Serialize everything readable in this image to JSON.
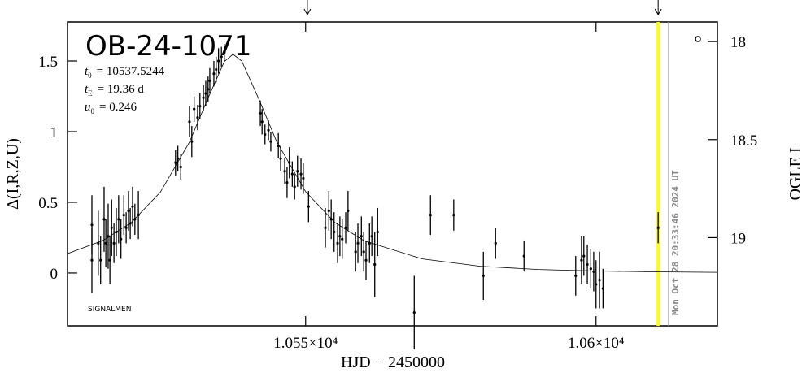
{
  "chart_data": {
    "type": "scatter",
    "title": "OB-24-1071",
    "xlabel": "HJD − 2450000",
    "ylabel": "Δ(I,R,Z,U)",
    "y2label": "OGLE I",
    "xlim": [
      10509,
      10620.9
    ],
    "ylim": [
      -0.374,
      1.776
    ],
    "y2lim": [
      19.45,
      17.9
    ],
    "xticks": [
      {
        "value": 10550,
        "label": "1.055×10⁴"
      },
      {
        "value": 10600,
        "label": "1.06×10⁴"
      }
    ],
    "yticks": [
      0,
      0.5,
      1,
      1.5
    ],
    "y2ticks": [
      18,
      18.5,
      19
    ],
    "color": "#000000",
    "points": {
      "x": [
        10513.2,
        10513.2,
        10514.3,
        10514.7,
        10515.3,
        10515.6,
        10516.0,
        10516.3,
        10516.6,
        10517.0,
        10517.4,
        10517.8,
        10518.2,
        10518.7,
        10519.1,
        10519.5,
        10519.8,
        10520.2,
        10520.6,
        10521.2,
        10527.6,
        10528.0,
        10528.5,
        10530.0,
        10530.4,
        10530.8,
        10531.4,
        10531.8,
        10532.4,
        10532.8,
        10533.2,
        10533.5,
        10534.2,
        10534.6,
        10535.0,
        10535.5,
        10536.0,
        10542.2,
        10542.5,
        10543.0,
        10543.6,
        10544.0,
        10545.3,
        10545.7,
        10546.4,
        10546.8,
        10547.2,
        10547.7,
        10548.1,
        10548.6,
        10549.2,
        10549.6,
        10550.5,
        10553.4,
        10554.0,
        10554.4,
        10554.9,
        10555.5,
        10555.9,
        10556.3,
        10556.9,
        10557.3,
        10558.6,
        10559.0,
        10559.6,
        10560.0,
        10560.4,
        10561.0,
        10561.4,
        10561.9,
        10562.4,
        10568.7,
        10571.5,
        10575.5,
        10580.6,
        10582.7,
        10587.6,
        10596.5,
        10597.5,
        10597.9,
        10598.5,
        10599.1,
        10599.6,
        10600.0,
        10600.6,
        10601.2,
        10610.7
      ],
      "values": [
        0.34,
        0.09,
        0.21,
        0.09,
        0.38,
        0.21,
        0.26,
        0.09,
        0.32,
        0.21,
        0.29,
        0.38,
        0.24,
        0.41,
        0.32,
        0.44,
        0.35,
        0.47,
        0.38,
        0.41,
        0.78,
        0.81,
        0.75,
        1.07,
        0.93,
        1.16,
        1.1,
        1.18,
        1.24,
        1.27,
        1.3,
        1.36,
        1.41,
        1.44,
        1.5,
        1.53,
        1.56,
        1.13,
        1.07,
        0.98,
        1.01,
        0.93,
        0.9,
        0.81,
        0.72,
        0.64,
        0.78,
        0.7,
        0.61,
        0.72,
        0.7,
        0.67,
        0.47,
        0.32,
        0.44,
        0.38,
        0.29,
        0.21,
        0.26,
        0.24,
        0.32,
        0.44,
        0.15,
        0.21,
        0.26,
        0.15,
        0.09,
        0.21,
        0.26,
        0.06,
        0.29,
        -0.28,
        0.41,
        0.41,
        -0.02,
        0.21,
        0.12,
        -0.02,
        0.09,
        0.12,
        0.06,
        0.03,
        0.01,
        -0.08,
        -0.05,
        -0.11,
        0.32
      ],
      "errors": [
        0.21,
        0.23,
        0.23,
        0.17,
        0.23,
        0.17,
        0.23,
        0.17,
        0.2,
        0.14,
        0.17,
        0.17,
        0.14,
        0.14,
        0.11,
        0.14,
        0.11,
        0.14,
        0.11,
        0.17,
        0.09,
        0.09,
        0.09,
        0.11,
        0.11,
        0.09,
        0.09,
        0.09,
        0.09,
        0.09,
        0.09,
        0.09,
        0.09,
        0.09,
        0.09,
        0.07,
        0.06,
        0.09,
        0.09,
        0.07,
        0.07,
        0.07,
        0.09,
        0.09,
        0.09,
        0.11,
        0.11,
        0.09,
        0.09,
        0.11,
        0.11,
        0.11,
        0.11,
        0.14,
        0.14,
        0.14,
        0.14,
        0.14,
        0.14,
        0.14,
        0.11,
        0.14,
        0.14,
        0.14,
        0.14,
        0.14,
        0.14,
        0.14,
        0.14,
        0.23,
        0.17,
        0.26,
        0.14,
        0.11,
        0.17,
        0.11,
        0.11,
        0.14,
        0.17,
        0.14,
        0.14,
        0.14,
        0.14,
        0.17,
        0.2,
        0.14,
        0.11
      ]
    },
    "model": {
      "x": [
        10509,
        10515,
        10520,
        10525,
        10530,
        10533,
        10536,
        10537.5,
        10539,
        10542,
        10545,
        10550,
        10555,
        10560,
        10570,
        10580,
        10590,
        10600,
        10610,
        10620.9
      ],
      "values": [
        0.137,
        0.228,
        0.357,
        0.572,
        0.925,
        1.219,
        1.496,
        1.547,
        1.5,
        1.225,
        0.93,
        0.575,
        0.358,
        0.229,
        0.1,
        0.048,
        0.025,
        0.014,
        0.008,
        0.005
      ]
    },
    "markers": [
      {
        "x": 10610.7,
        "color": "#ffff00"
      },
      {
        "x": 10612.5,
        "color": "#999999"
      }
    ],
    "arrows": [
      10550.3,
      10610.7
    ],
    "annotations": {
      "params": [
        {
          "symbol": "t",
          "sub": "0",
          "text": "= 10537.5244"
        },
        {
          "symbol": "t",
          "sub": "E",
          "text": "= 19.36 d"
        },
        {
          "symbol": "u",
          "sub": "0",
          "text": "= 0.246"
        }
      ],
      "credit": "SIGNALMEN",
      "timestamp": "Mon Oct 28 20:33:46 2024 UT"
    }
  }
}
